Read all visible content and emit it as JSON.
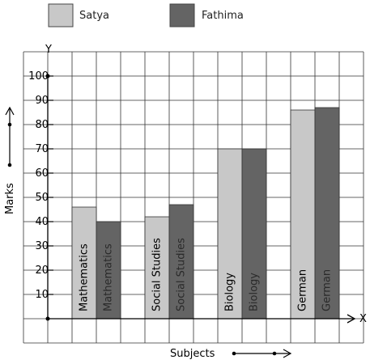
{
  "chart_data": {
    "type": "bar",
    "title": "",
    "xlabel": "Subjects",
    "ylabel": "Marks",
    "x_axis_letter": "X",
    "y_axis_letter": "Y",
    "categories": [
      "Mathematics",
      "Social Studies",
      "Biology",
      "German"
    ],
    "series": [
      {
        "name": "Satya",
        "values": [
          46,
          42,
          70,
          86
        ],
        "color": "#c8c8c8",
        "label_color": "#000000"
      },
      {
        "name": "Fathima",
        "values": [
          40,
          47,
          70,
          87
        ],
        "color": "#646464",
        "label_color": "#2a2a2a"
      }
    ],
    "ylim": [
      0,
      100
    ],
    "yticks": [
      10,
      20,
      30,
      40,
      50,
      60,
      70,
      80,
      90,
      100
    ],
    "grid": true,
    "legend_position": "top-left"
  }
}
